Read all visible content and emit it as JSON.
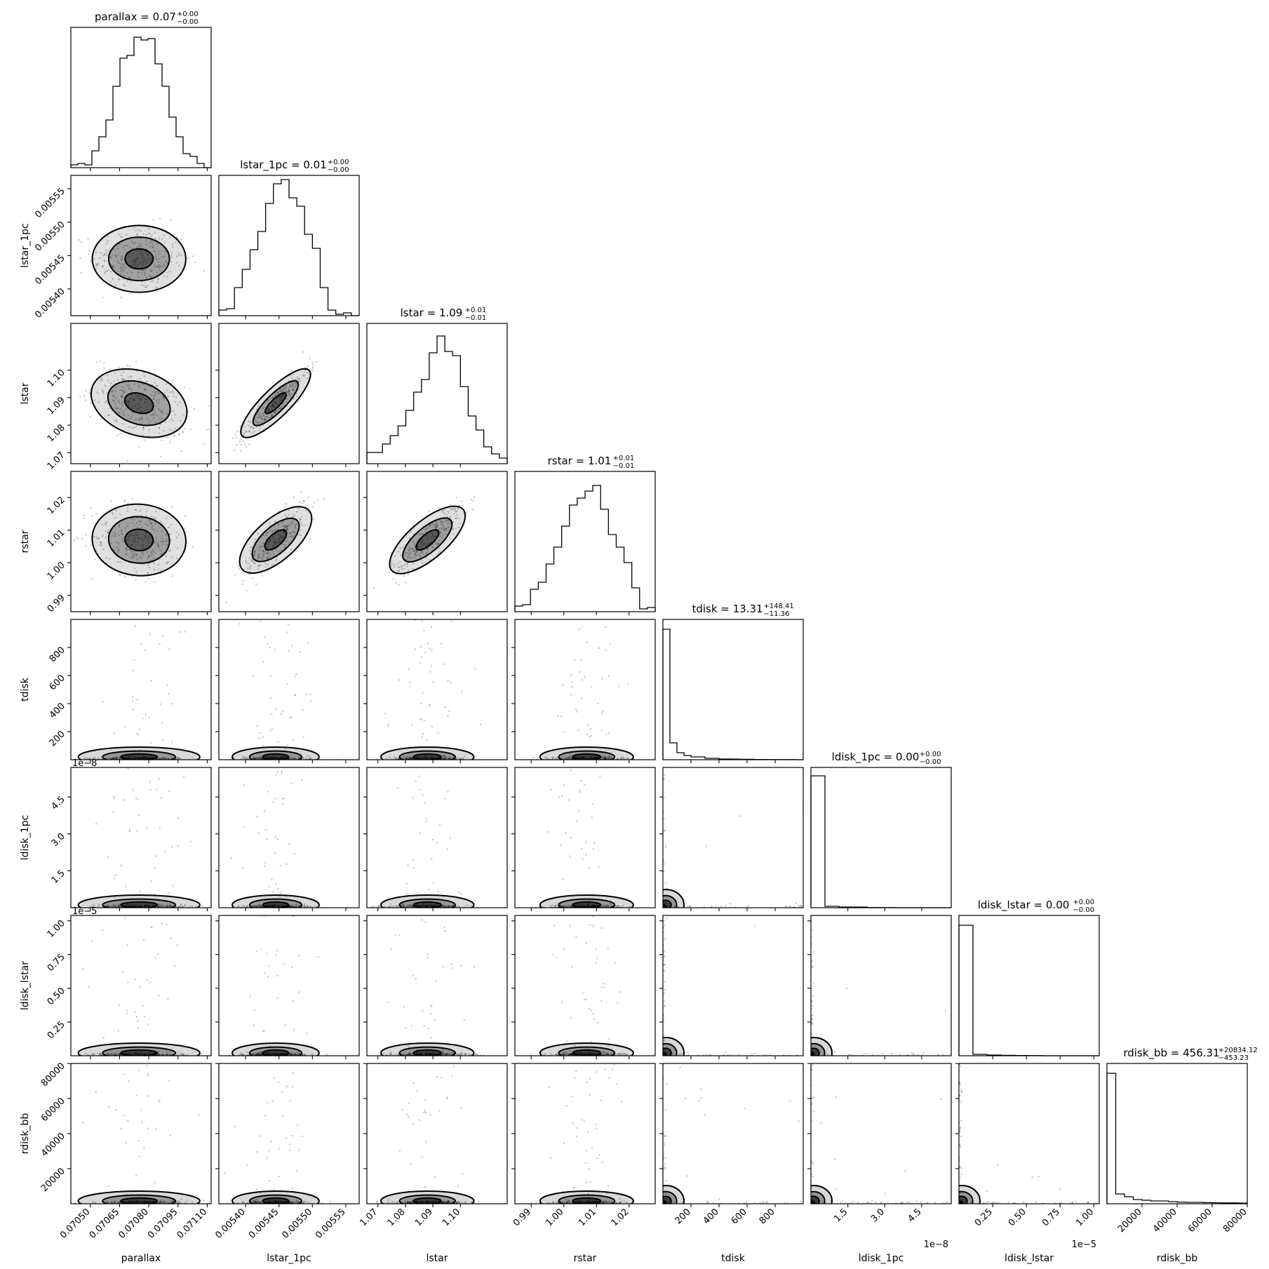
{
  "chart_data": {
    "type": "corner",
    "parameters": [
      {
        "name": "parallax",
        "title": "parallax = 0.07",
        "sup": "+0.00",
        "sub": "−0.00",
        "range": [
          0.0704,
          0.07112
        ],
        "ticks": [
          0.0705,
          0.07065,
          0.0708,
          0.07095,
          0.0711
        ],
        "tick_labels": [
          "0.07050",
          "0.07065",
          "0.07080",
          "0.07095",
          "0.07110"
        ],
        "offset": "",
        "median": 0.07075,
        "sigma": 0.00012,
        "shape": "gauss"
      },
      {
        "name": "lstar_1pc",
        "title": "lstar_1pc = 0.01",
        "sup": "+0.00",
        "sub": "−0.00",
        "range": [
          0.00536,
          0.00557
        ],
        "ticks": [
          0.0054,
          0.00545,
          0.0055,
          0.00555
        ],
        "tick_labels": [
          "0.00540",
          "0.00545",
          "0.00550",
          "0.00555"
        ],
        "offset": "",
        "median": 0.005445,
        "sigma": 2.5e-05,
        "shape": "gauss"
      },
      {
        "name": "lstar",
        "title": "lstar = 1.09",
        "sup": "+0.01",
        "sub": "−0.01",
        "range": [
          1.066,
          1.117
        ],
        "ticks": [
          1.07,
          1.08,
          1.09,
          1.1
        ],
        "tick_labels": [
          "1.07",
          "1.08",
          "1.09",
          "1.10"
        ],
        "offset": "",
        "median": 1.088,
        "sigma": 0.0065,
        "shape": "gauss"
      },
      {
        "name": "rstar",
        "title": "rstar = 1.01",
        "sup": "+0.01",
        "sub": "−0.01",
        "range": [
          0.985,
          1.028
        ],
        "ticks": [
          0.99,
          1.0,
          1.01,
          1.02
        ],
        "tick_labels": [
          "0.99",
          "1.00",
          "1.01",
          "1.02"
        ],
        "offset": "",
        "median": 1.007,
        "sigma": 0.0055,
        "shape": "gauss"
      },
      {
        "name": "tdisk",
        "title": "tdisk = 13.31",
        "sup": "+148.41",
        "sub": "−11.36",
        "range": [
          0,
          1000
        ],
        "ticks": [
          200,
          400,
          600,
          800
        ],
        "tick_labels": [
          "200",
          "400",
          "600",
          "800"
        ],
        "offset": "",
        "median": 13.31,
        "sigma": 80,
        "shape": "skew"
      },
      {
        "name": "ldisk_1pc",
        "title": "ldisk_1pc = 0.00",
        "sup": "+0.00",
        "sub": "−0.00",
        "range": [
          0,
          5.7
        ],
        "ticks": [
          1.5,
          3.0,
          4.5
        ],
        "tick_labels": [
          "1.5",
          "3.0",
          "4.5"
        ],
        "offset": "1e−8",
        "median": 0.1,
        "sigma": 0.3,
        "shape": "skew"
      },
      {
        "name": "ldisk_lstar",
        "title": "ldisk_lstar = 0.00",
        "sup": "+0.00",
        "sub": "−0.00",
        "range": [
          0,
          1.04
        ],
        "ticks": [
          0.25,
          0.5,
          0.75,
          1.0
        ],
        "tick_labels": [
          "0.25",
          "0.50",
          "0.75",
          "1.00"
        ],
        "offset": "1e−5",
        "median": 0.02,
        "sigma": 0.05,
        "shape": "skew"
      },
      {
        "name": "rdisk_bb",
        "title": "rdisk_bb = 456.31",
        "sup": "+20834.12",
        "sub": "−453.23",
        "range": [
          0,
          80000
        ],
        "ticks": [
          20000,
          40000,
          60000,
          80000
        ],
        "tick_labels": [
          "20000",
          "40000",
          "60000",
          "80000"
        ],
        "offset": "",
        "median": 456.31,
        "sigma": 8000,
        "shape": "skew"
      }
    ],
    "diag_hist_heights": [
      [
        0.02,
        0.03,
        0.02,
        0.12,
        0.22,
        0.34,
        0.58,
        0.78,
        0.8,
        0.93,
        0.91,
        0.92,
        0.74,
        0.58,
        0.36,
        0.22,
        0.1,
        0.08,
        0.03,
        0.0
      ],
      [
        0.04,
        0.05,
        0.2,
        0.33,
        0.47,
        0.6,
        0.8,
        0.94,
        0.97,
        0.84,
        0.78,
        0.58,
        0.48,
        0.2,
        0.04,
        0.01,
        0.02,
        0.0
      ],
      [
        0.08,
        0.08,
        0.14,
        0.2,
        0.27,
        0.38,
        0.51,
        0.6,
        0.79,
        0.91,
        0.8,
        0.77,
        0.55,
        0.34,
        0.24,
        0.12,
        0.07,
        0.04
      ],
      [
        0.04,
        0.05,
        0.16,
        0.21,
        0.34,
        0.46,
        0.61,
        0.76,
        0.81,
        0.86,
        0.9,
        0.73,
        0.55,
        0.46,
        0.35,
        0.17,
        0.02,
        0.03
      ],
      [
        0.93,
        0.12,
        0.05,
        0.03,
        0.02,
        0.02,
        0.01,
        0.01,
        0.005,
        0.005,
        0.004,
        0.003,
        0.003,
        0.002,
        0.002,
        0.001,
        0.001,
        0.001,
        0.001,
        0.0
      ],
      [
        0.94,
        0.01,
        0.005,
        0.005,
        0.002,
        0.001,
        0.0,
        0.0,
        0.0,
        0.0
      ],
      [
        0.93,
        0.01,
        0.005,
        0.003,
        0.002,
        0.001,
        0.0,
        0.0,
        0.0,
        0.0
      ],
      [
        0.93,
        0.07,
        0.05,
        0.03,
        0.025,
        0.02,
        0.02,
        0.015,
        0.012,
        0.01,
        0.01,
        0.008,
        0.007,
        0.006,
        0.006,
        0.005
      ]
    ],
    "correlations": {
      "1-0": 0.0,
      "2-0": -0.45,
      "2-1": 0.92,
      "3-0": -0.1,
      "3-1": 0.82,
      "3-2": 0.85
    }
  }
}
